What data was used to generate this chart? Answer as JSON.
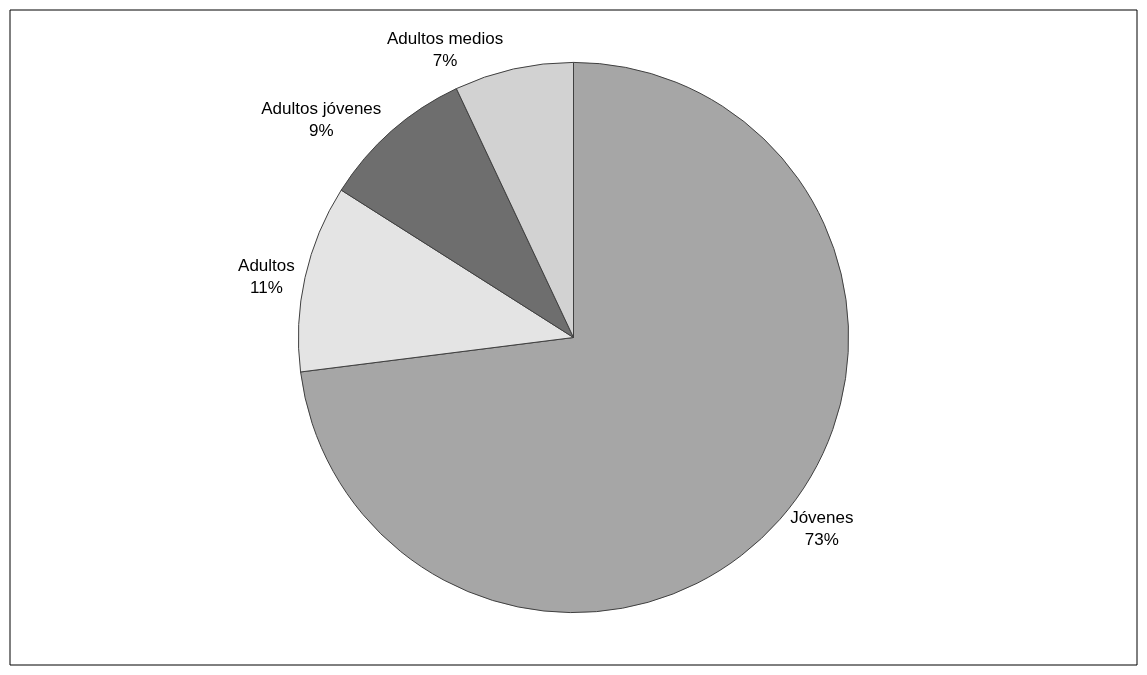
{
  "chart_data": {
    "type": "pie",
    "categories": [
      "Jóvenes",
      "Adultos",
      "Adultos jóvenes",
      "Adultos medios"
    ],
    "values": [
      73,
      11,
      9,
      7
    ],
    "value_labels": [
      "73%",
      "11%",
      "9%",
      "7%"
    ],
    "colors": [
      "#a6a6a6",
      "#e4e4e4",
      "#6e6e6e",
      "#d2d2d2"
    ],
    "legend": false
  }
}
